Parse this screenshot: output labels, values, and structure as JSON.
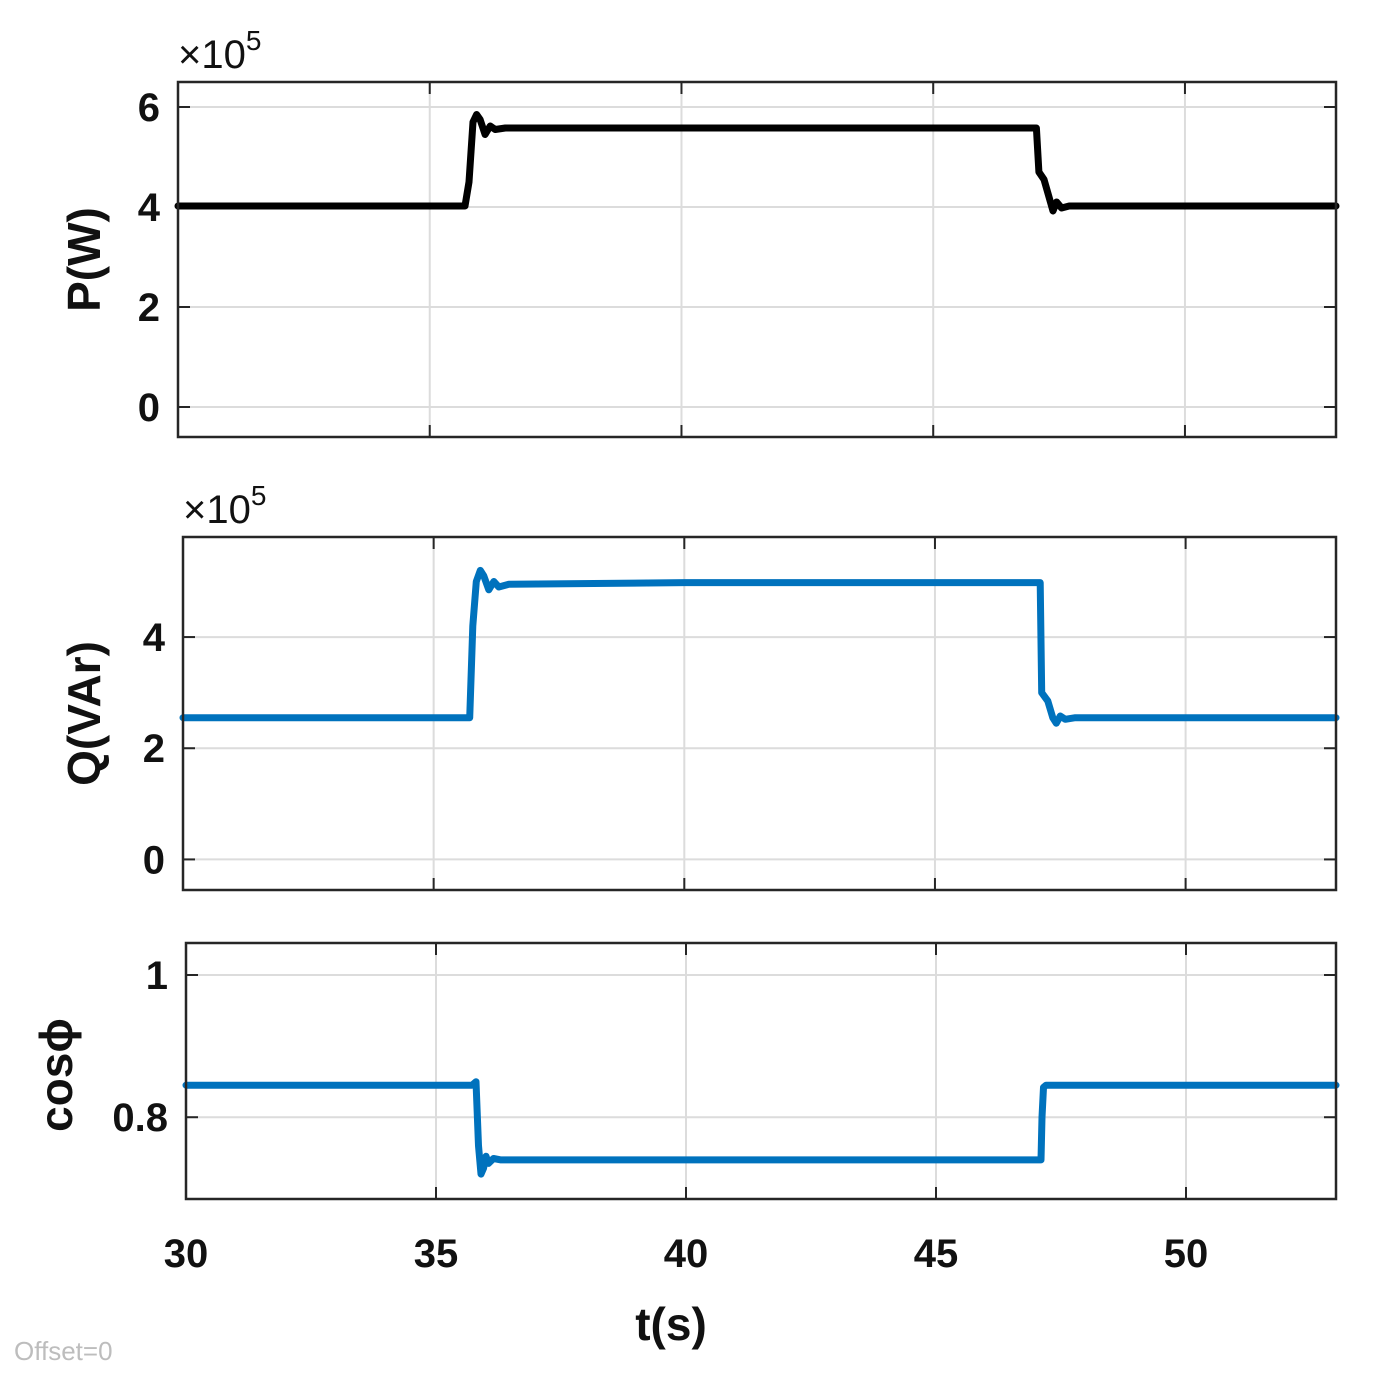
{
  "chart_data": [
    {
      "type": "line",
      "ylabel": "P(W)",
      "exponent_label": "×10",
      "exponent_power": "5",
      "xlim": [
        30,
        53
      ],
      "ylim": [
        -0.6,
        6.5
      ],
      "yticks": [
        0,
        2,
        4,
        6
      ],
      "ytick_labels": [
        "0",
        "2",
        "4",
        "6"
      ],
      "xticks": [
        35,
        40,
        45,
        50
      ],
      "grid": true,
      "series": [
        {
          "color": "#000000",
          "x": [
            30,
            35.7,
            35.78,
            35.86,
            35.93,
            36.0,
            36.1,
            36.2,
            36.3,
            36.5,
            40,
            45,
            47.05,
            47.1,
            47.2,
            47.3,
            47.38,
            47.45,
            47.55,
            47.7,
            50,
            53
          ],
          "y": [
            4.02,
            4.02,
            4.5,
            5.7,
            5.85,
            5.75,
            5.45,
            5.62,
            5.55,
            5.58,
            5.58,
            5.58,
            5.58,
            4.7,
            4.55,
            4.2,
            3.92,
            4.1,
            3.98,
            4.02,
            4.02,
            4.02
          ]
        }
      ]
    },
    {
      "type": "line",
      "ylabel": "Q(VAr)",
      "exponent_label": "×10",
      "exponent_power": "5",
      "xlim": [
        30,
        53
      ],
      "ylim": [
        -0.55,
        5.8
      ],
      "yticks": [
        0,
        2,
        4
      ],
      "ytick_labels": [
        "0",
        "2",
        "4"
      ],
      "xticks": [
        35,
        40,
        45,
        50
      ],
      "grid": true,
      "series": [
        {
          "color": "#0072BD",
          "x": [
            30,
            35.72,
            35.78,
            35.85,
            35.93,
            36.0,
            36.1,
            36.2,
            36.3,
            36.5,
            40,
            45,
            47.1,
            47.13,
            47.25,
            47.35,
            47.42,
            47.5,
            47.6,
            47.8,
            50,
            53
          ],
          "y": [
            2.55,
            2.55,
            4.2,
            5.0,
            5.2,
            5.1,
            4.85,
            5.0,
            4.9,
            4.95,
            4.98,
            4.98,
            4.98,
            3.0,
            2.85,
            2.55,
            2.45,
            2.58,
            2.52,
            2.55,
            2.55,
            2.55
          ]
        }
      ]
    },
    {
      "type": "line",
      "ylabel": "cosϕ",
      "xlim": [
        30,
        53
      ],
      "ylim": [
        0.685,
        1.045
      ],
      "yticks": [
        0.8,
        1
      ],
      "ytick_labels": [
        "0.8",
        "1"
      ],
      "xticks": [
        30,
        35,
        40,
        45,
        50
      ],
      "xtick_labels": [
        "30",
        "35",
        "40",
        "45",
        "50"
      ],
      "xlabel": "t(s)",
      "grid": true,
      "series": [
        {
          "color": "#0072BD",
          "x": [
            30,
            35.72,
            35.8,
            35.85,
            35.9,
            35.95,
            36.0,
            36.05,
            36.15,
            36.3,
            36.5,
            40,
            45,
            47.1,
            47.12,
            47.15,
            47.2,
            47.3,
            50,
            53
          ],
          "y": [
            0.845,
            0.845,
            0.85,
            0.76,
            0.72,
            0.728,
            0.745,
            0.735,
            0.742,
            0.74,
            0.74,
            0.74,
            0.74,
            0.74,
            0.8,
            0.842,
            0.845,
            0.845,
            0.845,
            0.845
          ]
        }
      ]
    }
  ],
  "footer": {
    "offset_text": "Offset=0"
  }
}
